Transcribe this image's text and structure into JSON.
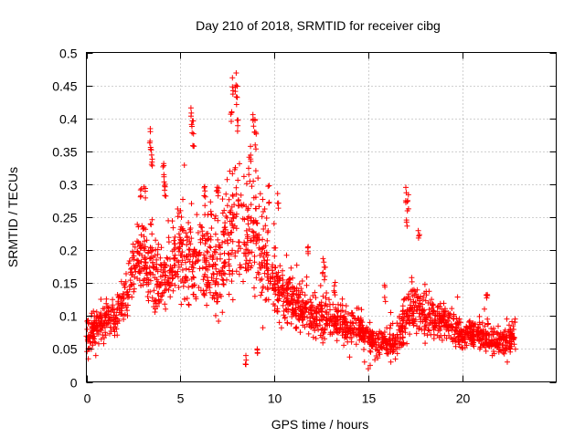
{
  "chart_data": {
    "type": "scatter",
    "title": "Day 210 of 2018, SRMTID for receiver cibg",
    "xlabel": "GPS time / hours",
    "ylabel": "SRMTID / TECUs",
    "xlim": [
      0,
      25
    ],
    "ylim": [
      0,
      0.5
    ],
    "x_ticks": [
      0,
      5,
      10,
      15,
      20
    ],
    "x_tick_labels": [
      "0",
      "5",
      "10",
      "15",
      "20"
    ],
    "y_ticks": [
      0,
      0.05,
      0.1,
      0.15,
      0.2,
      0.25,
      0.3,
      0.35,
      0.4,
      0.45,
      0.5
    ],
    "y_tick_labels": [
      "0",
      "0.05",
      "0.1",
      "0.15",
      "0.2",
      "0.25",
      "0.3",
      "0.35",
      "0.4",
      "0.45",
      "0.5"
    ],
    "grid": true,
    "marker": "+",
    "color": "#ff0000",
    "profile": {
      "description_hours": [
        0,
        0.5,
        1,
        1.5,
        2,
        2.5,
        3,
        3.5,
        4,
        4.5,
        5,
        5.5,
        6,
        6.5,
        7,
        7.5,
        8,
        8.5,
        9,
        9.5,
        10,
        10.5,
        11,
        11.5,
        12,
        12.5,
        13,
        13.5,
        14,
        14.5,
        15,
        15.5,
        16,
        16.5,
        17,
        17.5,
        18,
        18.5,
        19,
        19.5,
        20,
        20.5,
        21,
        21.5,
        22,
        22.5,
        22.8
      ],
      "center": [
        0.07,
        0.08,
        0.09,
        0.1,
        0.12,
        0.17,
        0.19,
        0.17,
        0.15,
        0.16,
        0.2,
        0.18,
        0.2,
        0.19,
        0.17,
        0.2,
        0.24,
        0.23,
        0.22,
        0.18,
        0.15,
        0.13,
        0.12,
        0.11,
        0.1,
        0.1,
        0.09,
        0.09,
        0.08,
        0.08,
        0.07,
        0.06,
        0.06,
        0.06,
        0.1,
        0.11,
        0.1,
        0.09,
        0.09,
        0.08,
        0.07,
        0.07,
        0.07,
        0.06,
        0.06,
        0.06,
        0.08
      ],
      "spread": [
        0.03,
        0.03,
        0.03,
        0.03,
        0.04,
        0.06,
        0.07,
        0.07,
        0.06,
        0.06,
        0.08,
        0.08,
        0.09,
        0.09,
        0.08,
        0.1,
        0.11,
        0.1,
        0.1,
        0.08,
        0.06,
        0.05,
        0.04,
        0.04,
        0.04,
        0.04,
        0.035,
        0.035,
        0.035,
        0.03,
        0.03,
        0.025,
        0.025,
        0.03,
        0.05,
        0.045,
        0.04,
        0.035,
        0.035,
        0.03,
        0.025,
        0.025,
        0.025,
        0.025,
        0.025,
        0.025,
        0.03
      ]
    },
    "spikes": [
      {
        "x": 3.4,
        "y": 0.385
      },
      {
        "x": 3.45,
        "y": 0.36
      },
      {
        "x": 3.5,
        "y": 0.355
      },
      {
        "x": 4.1,
        "y": 0.335
      },
      {
        "x": 4.15,
        "y": 0.325
      },
      {
        "x": 4.2,
        "y": 0.31
      },
      {
        "x": 5.6,
        "y": 0.42
      },
      {
        "x": 5.65,
        "y": 0.4
      },
      {
        "x": 5.7,
        "y": 0.385
      },
      {
        "x": 7.8,
        "y": 0.465
      },
      {
        "x": 7.95,
        "y": 0.47
      },
      {
        "x": 8.0,
        "y": 0.45
      },
      {
        "x": 7.7,
        "y": 0.41
      },
      {
        "x": 8.05,
        "y": 0.4
      },
      {
        "x": 8.9,
        "y": 0.415
      },
      {
        "x": 8.95,
        "y": 0.4
      },
      {
        "x": 9.0,
        "y": 0.38
      },
      {
        "x": 8.7,
        "y": 0.36
      },
      {
        "x": 2.9,
        "y": 0.295
      },
      {
        "x": 3.1,
        "y": 0.3
      },
      {
        "x": 6.3,
        "y": 0.31
      },
      {
        "x": 7.0,
        "y": 0.3
      },
      {
        "x": 9.7,
        "y": 0.3
      },
      {
        "x": 10.2,
        "y": 0.29
      },
      {
        "x": 17.0,
        "y": 0.3
      },
      {
        "x": 17.1,
        "y": 0.285
      },
      {
        "x": 17.05,
        "y": 0.26
      },
      {
        "x": 17.7,
        "y": 0.23
      },
      {
        "x": 11.8,
        "y": 0.21
      },
      {
        "x": 12.6,
        "y": 0.19
      },
      {
        "x": 12.7,
        "y": 0.18
      },
      {
        "x": 13.2,
        "y": 0.16
      },
      {
        "x": 15.9,
        "y": 0.15
      },
      {
        "x": 21.3,
        "y": 0.135
      },
      {
        "x": 9.1,
        "y": 0.055
      },
      {
        "x": 8.5,
        "y": 0.055
      }
    ],
    "lows": [
      {
        "x": 15.0,
        "y": 0.02
      },
      {
        "x": 15.1,
        "y": 0.025
      },
      {
        "x": 14.8,
        "y": 0.03
      },
      {
        "x": 0.1,
        "y": 0.035
      },
      {
        "x": 0.5,
        "y": 0.04
      },
      {
        "x": 22.4,
        "y": 0.03
      },
      {
        "x": 21.6,
        "y": 0.04
      },
      {
        "x": 16.2,
        "y": 0.03
      }
    ]
  }
}
